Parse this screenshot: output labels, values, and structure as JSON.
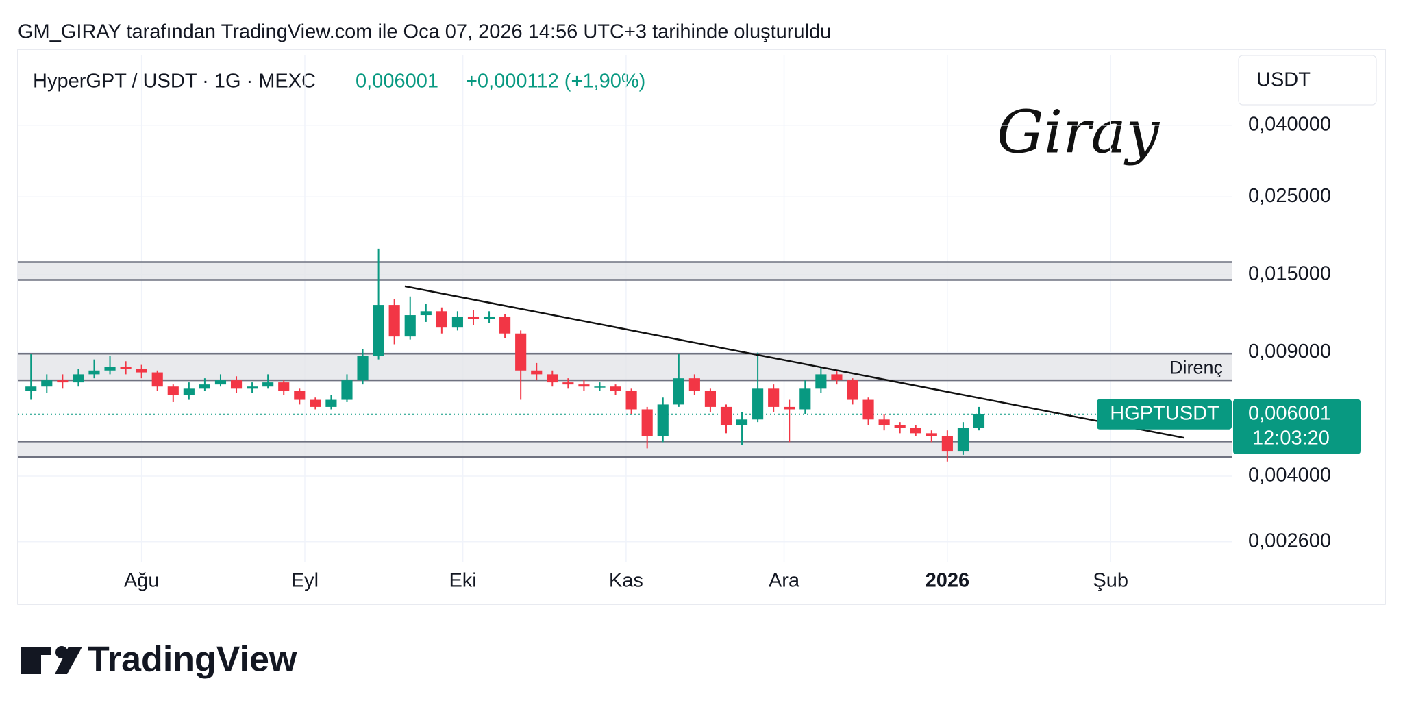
{
  "header": {
    "caption": "GM_GIRAY tarafından TradingView.com ile Oca 07, 2026 14:56 UTC+3 tarihinde oluşturuldu",
    "symbol": "HyperGPT / USDT · 1G · MEXC",
    "last": "0,006001",
    "change": "+0,000112 (+1,90%)"
  },
  "signature": "Giray",
  "logo": "TradingView",
  "chart_data": {
    "type": "candlestick",
    "log_scale": true,
    "grid": true,
    "currency": "USDT",
    "up_color": "#089981",
    "down_color": "#f23645",
    "xlim": [
      -0.5,
      230
    ],
    "ylim": [
      0.00228,
      0.0632
    ],
    "xticks": [
      {
        "value": 23,
        "label": "Ağu"
      },
      {
        "value": 54,
        "label": "Eyl"
      },
      {
        "value": 84,
        "label": "Eki"
      },
      {
        "value": 115,
        "label": "Kas"
      },
      {
        "value": 145,
        "label": "Ara"
      },
      {
        "value": 176,
        "label": "2026"
      },
      {
        "value": 207,
        "label": "Şub"
      }
    ],
    "yticks": [
      {
        "value": 0.04,
        "label": "0,040000"
      },
      {
        "value": 0.025,
        "label": "0,025000"
      },
      {
        "value": 0.015,
        "label": "0,015000"
      },
      {
        "value": 0.009,
        "label": "0,009000"
      },
      {
        "value": 0.004,
        "label": "0,004000"
      },
      {
        "value": 0.0026,
        "label": "0,002600"
      }
    ],
    "x": [
      2,
      5,
      8,
      11,
      14,
      17,
      20,
      23,
      26,
      29,
      32,
      35,
      38,
      41,
      44,
      47,
      50,
      53,
      56,
      59,
      62,
      65,
      68,
      71,
      74,
      77,
      80,
      83,
      86,
      89,
      92,
      95,
      98,
      101,
      104,
      107,
      110,
      113,
      116,
      119,
      122,
      125,
      128,
      131,
      134,
      137,
      140,
      143,
      146,
      149,
      152,
      155,
      158,
      161,
      164,
      167,
      170,
      173,
      176,
      179,
      182
    ],
    "open": [
      0.007,
      0.0072,
      0.0075,
      0.0074,
      0.0078,
      0.008,
      0.0082,
      0.0081,
      0.0079,
      0.0072,
      0.0068,
      0.0071,
      0.0073,
      0.0075,
      0.0071,
      0.0072,
      0.0074,
      0.007,
      0.0066,
      0.0063,
      0.0066,
      0.0075,
      0.0088,
      0.0123,
      0.01,
      0.0115,
      0.0118,
      0.0106,
      0.0114,
      0.0112,
      0.0114,
      0.0102,
      0.008,
      0.0078,
      0.0074,
      0.0073,
      0.0072,
      0.0072,
      0.007,
      0.0062,
      0.0052,
      0.0064,
      0.0076,
      0.007,
      0.0063,
      0.0056,
      0.0058,
      0.0071,
      0.0063,
      0.0062,
      0.0071,
      0.0078,
      0.0075,
      0.0066,
      0.0058,
      0.0056,
      0.0055,
      0.0053,
      0.0052,
      0.0047,
      0.0055
    ],
    "high": [
      0.0089,
      0.0078,
      0.0078,
      0.0081,
      0.0086,
      0.0088,
      0.0085,
      0.0083,
      0.008,
      0.0073,
      0.0074,
      0.0076,
      0.0078,
      0.0077,
      0.0074,
      0.0078,
      0.0075,
      0.0071,
      0.0067,
      0.0068,
      0.0078,
      0.0092,
      0.0178,
      0.0128,
      0.013,
      0.0124,
      0.0121,
      0.0118,
      0.0119,
      0.0118,
      0.0116,
      0.0104,
      0.0084,
      0.008,
      0.0076,
      0.0075,
      0.0074,
      0.0073,
      0.0071,
      0.0063,
      0.0067,
      0.0089,
      0.0078,
      0.0071,
      0.0064,
      0.0061,
      0.009,
      0.0073,
      0.0066,
      0.0075,
      0.0082,
      0.008,
      0.0076,
      0.0067,
      0.006,
      0.0057,
      0.0056,
      0.0054,
      0.0054,
      0.0057,
      0.0063
    ],
    "low": [
      0.0066,
      0.0069,
      0.0071,
      0.0072,
      0.0076,
      0.0078,
      0.0078,
      0.0076,
      0.007,
      0.0065,
      0.0066,
      0.007,
      0.0072,
      0.0069,
      0.0069,
      0.0071,
      0.0068,
      0.0064,
      0.0062,
      0.0062,
      0.0065,
      0.0073,
      0.0086,
      0.0095,
      0.0098,
      0.011,
      0.0102,
      0.0104,
      0.0108,
      0.0109,
      0.0099,
      0.0066,
      0.0075,
      0.0072,
      0.0071,
      0.007,
      0.007,
      0.0068,
      0.006,
      0.0048,
      0.005,
      0.0063,
      0.0068,
      0.0061,
      0.0053,
      0.0049,
      0.0057,
      0.0061,
      0.005,
      0.006,
      0.0069,
      0.0073,
      0.0064,
      0.0056,
      0.0054,
      0.0053,
      0.0052,
      0.005,
      0.0044,
      0.0046,
      0.0054
    ],
    "close": [
      0.0072,
      0.0075,
      0.0074,
      0.0078,
      0.008,
      0.0082,
      0.0081,
      0.0079,
      0.0072,
      0.0068,
      0.0071,
      0.0073,
      0.0075,
      0.0071,
      0.0072,
      0.0074,
      0.007,
      0.0066,
      0.0063,
      0.0066,
      0.0075,
      0.0088,
      0.0123,
      0.01,
      0.0115,
      0.0118,
      0.0106,
      0.0114,
      0.0112,
      0.0114,
      0.0102,
      0.008,
      0.0078,
      0.0074,
      0.0073,
      0.0072,
      0.0072,
      0.007,
      0.0062,
      0.0052,
      0.0064,
      0.0076,
      0.007,
      0.0063,
      0.0056,
      0.0058,
      0.0071,
      0.0063,
      0.0062,
      0.0071,
      0.0078,
      0.0075,
      0.0066,
      0.0058,
      0.0056,
      0.0055,
      0.0053,
      0.0052,
      0.0047,
      0.0055,
      0.006001
    ],
    "zones": [
      [
        0.0145,
        0.0163
      ],
      [
        0.0075,
        0.00893
      ],
      [
        0.00453,
        0.00502
      ]
    ],
    "annotation": "Direnç",
    "trendline": {
      "x": [
        73,
        221
      ],
      "y": [
        0.0139,
        0.00514
      ]
    },
    "last_price": {
      "value": 0.006001,
      "label": "0,006001"
    },
    "symbol_label": "HGPTUSDT",
    "countdown": "12:03:20"
  }
}
